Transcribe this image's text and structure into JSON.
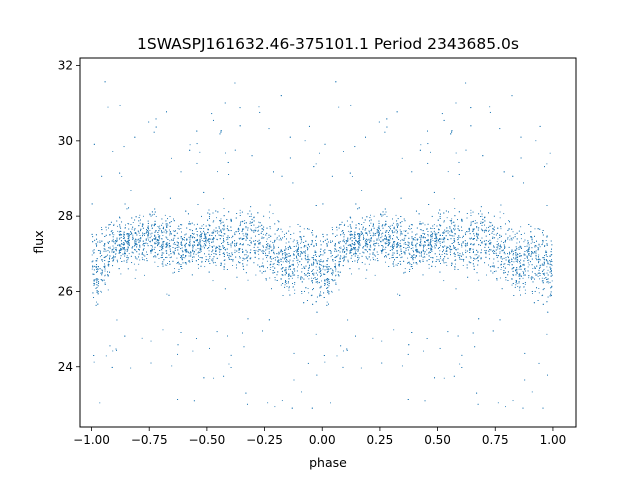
{
  "chart_data": {
    "type": "scatter",
    "title": "1SWASPJ161632.46-375101.1 Period 2343685.0s",
    "xlabel": "phase",
    "ylabel": "flux",
    "xlim": [
      -1.05,
      1.1
    ],
    "ylim": [
      22.4,
      32.2
    ],
    "xticks": [
      -1.0,
      -0.75,
      -0.5,
      -0.25,
      0.0,
      0.25,
      0.5,
      0.75,
      1.0
    ],
    "xtick_labels": [
      "−1.00",
      "−0.75",
      "−0.50",
      "−0.25",
      "0.00",
      "0.25",
      "0.50",
      "0.75",
      "1.00"
    ],
    "yticks": [
      24,
      26,
      28,
      30,
      32
    ],
    "ytick_labels": [
      "24",
      "26",
      "28",
      "30",
      "32"
    ],
    "grid": false,
    "marker_color": "#1f77b4",
    "phase_range": [
      -1.0,
      1.0
    ],
    "folded_period_repeat": 1.0,
    "flux_envelope": {
      "phase": [
        0.0,
        0.05,
        0.1,
        0.15,
        0.2,
        0.25,
        0.3,
        0.35,
        0.4,
        0.45,
        0.5,
        0.55,
        0.6,
        0.65,
        0.7,
        0.75,
        0.8,
        0.85,
        0.9,
        0.95
      ],
      "median": [
        26.6,
        26.9,
        27.2,
        27.3,
        27.3,
        27.4,
        27.4,
        27.3,
        27.2,
        27.3,
        27.3,
        27.4,
        27.3,
        27.4,
        27.4,
        27.2,
        27.0,
        26.8,
        26.9,
        26.7
      ],
      "spread": [
        0.9,
        0.8,
        0.65,
        0.6,
        0.6,
        0.6,
        0.6,
        0.6,
        0.6,
        0.6,
        0.65,
        0.7,
        0.7,
        0.75,
        0.7,
        0.7,
        0.75,
        0.8,
        0.8,
        0.8
      ]
    },
    "points_per_cycle": 4200
  }
}
